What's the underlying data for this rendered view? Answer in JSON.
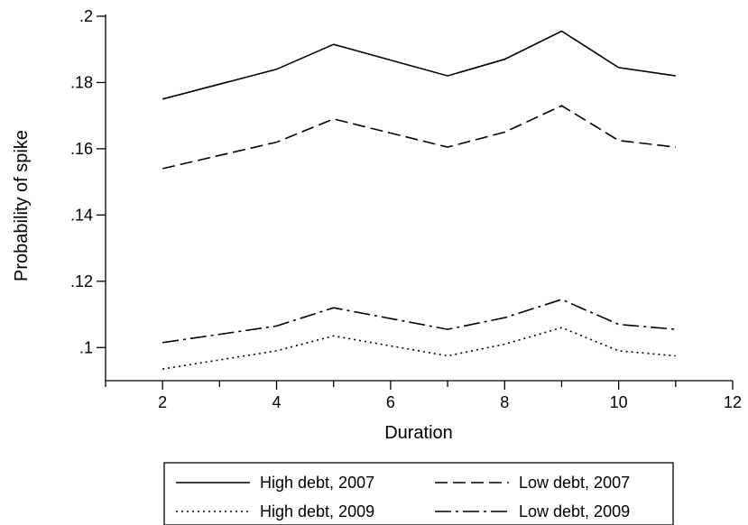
{
  "chart_data": {
    "type": "line",
    "title": "",
    "xlabel": "Duration",
    "ylabel": "Probability of spike",
    "xlim": [
      1,
      12
    ],
    "ylim": [
      0.09,
      0.2
    ],
    "x_ticks": [
      2,
      4,
      6,
      8,
      10,
      12
    ],
    "x_tick_labels": [
      "2",
      "4",
      "6",
      "8",
      "10",
      "12"
    ],
    "x_minor_ticks": [
      1,
      3,
      5,
      7,
      9,
      11
    ],
    "y_ticks": [
      0.1,
      0.12,
      0.14,
      0.16,
      0.18,
      0.2
    ],
    "y_tick_labels": [
      ".1",
      ".12",
      ".14",
      ".16",
      ".18",
      ".2"
    ],
    "grid": false,
    "legend_position": "bottom",
    "x": [
      2,
      4,
      5,
      7,
      8,
      9,
      10,
      11
    ],
    "series": [
      {
        "name": "High debt, 2007",
        "style": "solid",
        "values": [
          0.175,
          0.184,
          0.1915,
          0.182,
          0.187,
          0.1955,
          0.1845,
          0.182
        ]
      },
      {
        "name": "Low debt, 2007",
        "style": "dashed",
        "values": [
          0.154,
          0.162,
          0.169,
          0.1605,
          0.165,
          0.173,
          0.1625,
          0.1605
        ]
      },
      {
        "name": "High debt, 2009",
        "style": "dotted",
        "values": [
          0.0935,
          0.099,
          0.1035,
          0.0975,
          0.101,
          0.106,
          0.099,
          0.0975
        ]
      },
      {
        "name": "Low debt, 2009",
        "style": "longdash-dot",
        "values": [
          0.1015,
          0.1065,
          0.112,
          0.1055,
          0.109,
          0.1145,
          0.107,
          0.1055
        ]
      }
    ],
    "colors": {
      "line": "#000000",
      "background": "#ffffff"
    }
  }
}
